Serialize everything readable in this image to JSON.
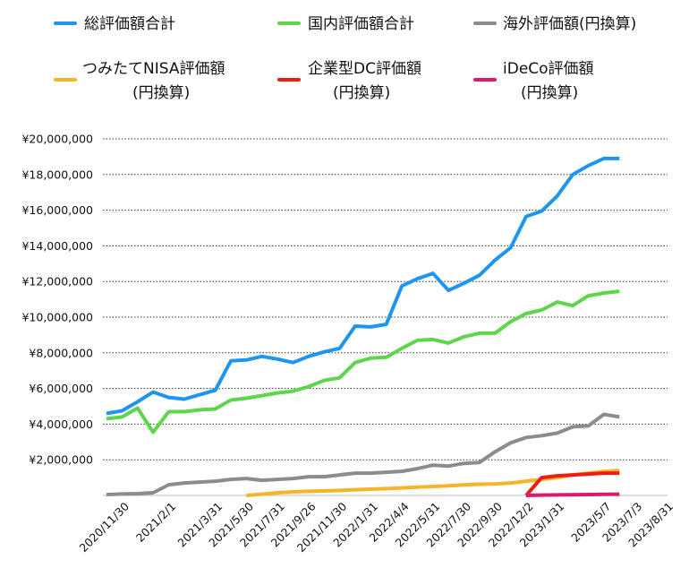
{
  "chart_data": {
    "type": "line",
    "title": "",
    "xlabel": "",
    "ylabel": "",
    "ylim": [
      0,
      20000000
    ],
    "y_ticks": [
      "¥20,000,000",
      "¥18,000,000",
      "¥16,000,000",
      "¥14,000,000",
      "¥12,000,000",
      "¥10,000,000",
      "¥8,000,000",
      "¥6,000,000",
      "¥4,000,000",
      "¥2,000,000"
    ],
    "y_tick_values": [
      20000000,
      18000000,
      16000000,
      14000000,
      12000000,
      10000000,
      8000000,
      6000000,
      4000000,
      2000000
    ],
    "grid": "horizontal dotted",
    "legend_position": "top",
    "x": [
      "2020/11/30",
      "2020/12/31",
      "2021/1/15",
      "2021/2/1",
      "2021/2/15",
      "2021/3/1",
      "2021/3/31",
      "2021/4/30",
      "2021/5/30",
      "2021/6/30",
      "2021/7/31",
      "2021/8/31",
      "2021/9/26",
      "2021/10/31",
      "2021/11/30",
      "2021/12/31",
      "2022/1/31",
      "2022/2/28",
      "2022/4/4",
      "2022/4/29",
      "2022/5/31",
      "2022/6/30",
      "2022/7/30",
      "2022/8/31",
      "2022/9/30",
      "2022/10/31",
      "2022/12/2",
      "2022/12/31",
      "2023/1/31",
      "2023/2/28",
      "2023/3/31",
      "2023/5/7",
      "2023/6/1",
      "2023/7/3",
      "2023/7/31",
      "2023/8/31"
    ],
    "x_tick_labels": [
      "2020/11/30",
      "2021/2/1",
      "2021/3/31",
      "2021/5/30",
      "2021/7/31",
      "2021/9/26",
      "2021/11/30",
      "2022/1/31",
      "2022/4/4",
      "2022/5/31",
      "2022/7/30",
      "2022/9/30",
      "2022/12/2",
      "2023/1/31",
      "2023/5/7",
      "2023/7/3",
      "2023/8/31"
    ],
    "series": [
      {
        "name": "総評価額合計",
        "color": "#1e96f0",
        "values": [
          4600000,
          4750000,
          5250000,
          5800000,
          5500000,
          5400000,
          5650000,
          5900000,
          7550000,
          7600000,
          7800000,
          7650000,
          7450000,
          7800000,
          8050000,
          8250000,
          9500000,
          9450000,
          9600000,
          11750000,
          12150000,
          12450000,
          11500000,
          11900000,
          12350000,
          13200000,
          13900000,
          15650000,
          15950000,
          16800000,
          18000000,
          18500000,
          18900000,
          18900000,
          null,
          null
        ]
      },
      {
        "name": "国内評価額合計",
        "color": "#5ed54a",
        "values": [
          4300000,
          4400000,
          4900000,
          3550000,
          4700000,
          4700000,
          4800000,
          4850000,
          5350000,
          5450000,
          5600000,
          5750000,
          5850000,
          6100000,
          6450000,
          6600000,
          7450000,
          7700000,
          7750000,
          8250000,
          8700000,
          8750000,
          8550000,
          8900000,
          9100000,
          9100000,
          9750000,
          10200000,
          10400000,
          10850000,
          10650000,
          11200000,
          11350000,
          11450000,
          null,
          null
        ]
      },
      {
        "name": "海外評価額(円換算)",
        "color": "#8c8c8c",
        "values": [
          50000,
          80000,
          100000,
          150000,
          600000,
          700000,
          750000,
          800000,
          900000,
          950000,
          850000,
          900000,
          950000,
          1050000,
          1050000,
          1150000,
          1250000,
          1250000,
          1300000,
          1350000,
          1500000,
          1700000,
          1650000,
          1800000,
          1850000,
          2450000,
          2950000,
          3250000,
          3350000,
          3500000,
          3850000,
          3900000,
          4550000,
          4400000,
          null,
          null
        ]
      },
      {
        "name": "つみたてNISA評価額(円換算)",
        "color": "#f5b52a",
        "values": [
          null,
          null,
          null,
          null,
          null,
          null,
          null,
          null,
          null,
          0,
          70000,
          150000,
          200000,
          230000,
          250000,
          280000,
          320000,
          350000,
          380000,
          420000,
          460000,
          500000,
          540000,
          600000,
          630000,
          650000,
          700000,
          800000,
          900000,
          1000000,
          1150000,
          1250000,
          1350000,
          1400000,
          null,
          null
        ]
      },
      {
        "name": "企業型DC評価額(円換算)",
        "color": "#ef1c12",
        "values": [
          null,
          null,
          null,
          null,
          null,
          null,
          null,
          null,
          null,
          null,
          null,
          null,
          null,
          null,
          null,
          null,
          null,
          null,
          null,
          null,
          null,
          null,
          null,
          null,
          null,
          null,
          null,
          0,
          1000000,
          1100000,
          1150000,
          1200000,
          1250000,
          1250000,
          null,
          null
        ]
      },
      {
        "name": "iDeCo評価額(円換算)",
        "color": "#d81b6a",
        "values": [
          null,
          null,
          null,
          null,
          null,
          null,
          null,
          null,
          null,
          null,
          null,
          null,
          null,
          null,
          null,
          null,
          null,
          null,
          null,
          null,
          null,
          null,
          null,
          null,
          null,
          null,
          null,
          0,
          20000,
          30000,
          40000,
          50000,
          60000,
          70000,
          null,
          null
        ]
      }
    ]
  },
  "legend": [
    {
      "label": "総評価額合計",
      "color": "#1e96f0"
    },
    {
      "label": "国内評価額合計",
      "color": "#5ed54a"
    },
    {
      "label": "海外評価額(円換算)",
      "color": "#8c8c8c"
    },
    {
      "label_line1": "つみたてNISA評価額",
      "label_line2": "(円換算)",
      "color": "#f5b52a"
    },
    {
      "label_line1": "企業型DC評価額",
      "label_line2": "(円換算)",
      "color": "#ef1c12"
    },
    {
      "label_line1": "iDeCo評価額",
      "label_line2": "(円換算)",
      "color": "#d81b6a"
    }
  ]
}
